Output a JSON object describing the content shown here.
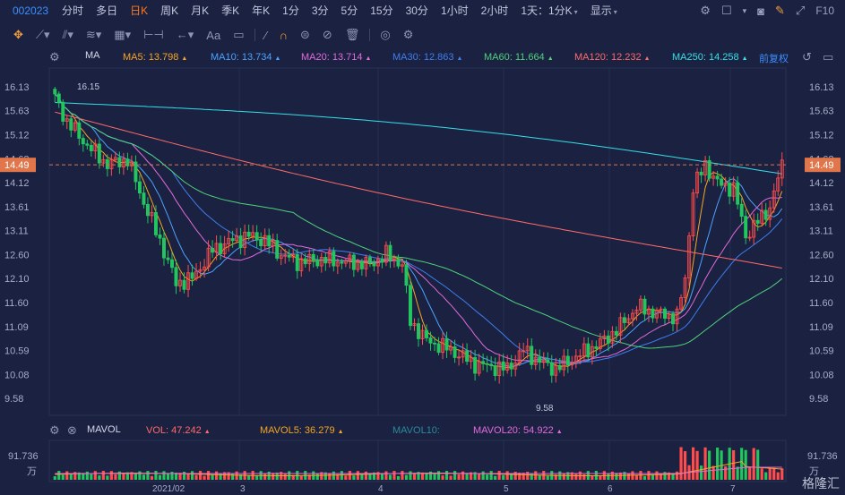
{
  "toolbar": {
    "stock_code": "002023",
    "timeframes": [
      {
        "label": "分时",
        "active": false
      },
      {
        "label": "多日",
        "active": false
      },
      {
        "label": "日K",
        "active": true
      },
      {
        "label": "周K",
        "active": false
      },
      {
        "label": "月K",
        "active": false
      },
      {
        "label": "季K",
        "active": false
      },
      {
        "label": "年K",
        "active": false
      },
      {
        "label": "1分",
        "active": false
      },
      {
        "label": "3分",
        "active": false
      },
      {
        "label": "5分",
        "active": false
      },
      {
        "label": "15分",
        "active": false
      },
      {
        "label": "30分",
        "active": false
      },
      {
        "label": "1小时",
        "active": false
      },
      {
        "label": "2小时",
        "active": false
      }
    ],
    "period_dropdown": "1天：1分K",
    "display_dropdown": "显示",
    "f10": "F10"
  },
  "ma_legend": {
    "group": "MA",
    "items": [
      {
        "label": "MA5: 13.798",
        "color": "#f5a623"
      },
      {
        "label": "MA10: 13.734",
        "color": "#4aa3ff"
      },
      {
        "label": "MA20: 13.714",
        "color": "#e36bdc"
      },
      {
        "label": "MA30: 12.863",
        "color": "#3d7ff0"
      },
      {
        "label": "MA60: 11.664",
        "color": "#4fd27d"
      },
      {
        "label": "MA120: 12.232",
        "color": "#ff6b6b"
      },
      {
        "label": "MA250: 14.258",
        "color": "#35e0e8"
      }
    ],
    "adjust": "前复权"
  },
  "price_axis": [
    "16.13",
    "15.63",
    "15.12",
    "14.62",
    "14.12",
    "13.61",
    "13.11",
    "12.60",
    "12.10",
    "11.60",
    "11.09",
    "10.59",
    "10.08",
    "9.58"
  ],
  "current_price": "14.49",
  "high_label": "16.15",
  "low_label": "9.58",
  "vol_legend": {
    "group": "MAVOL",
    "items": [
      {
        "label": "VOL: 47.242",
        "color": "#ff6b6b"
      },
      {
        "label": "MAVOL5: 36.279",
        "color": "#f5a623"
      },
      {
        "label": "MAVOL10:",
        "color": "#2a8a9a"
      },
      {
        "label": "MAVOL20: 54.922",
        "color": "#e36bdc"
      }
    ]
  },
  "vol_axis": {
    "max": "91.736",
    "unit": "万"
  },
  "x_axis": [
    "2021/02",
    "3",
    "4",
    "5",
    "6",
    "7"
  ],
  "watermark": "格隆汇",
  "colors": {
    "up": "#ff4d4d",
    "down": "#22c55e",
    "bg": "#1b2140",
    "grid": "#2a3358"
  }
}
